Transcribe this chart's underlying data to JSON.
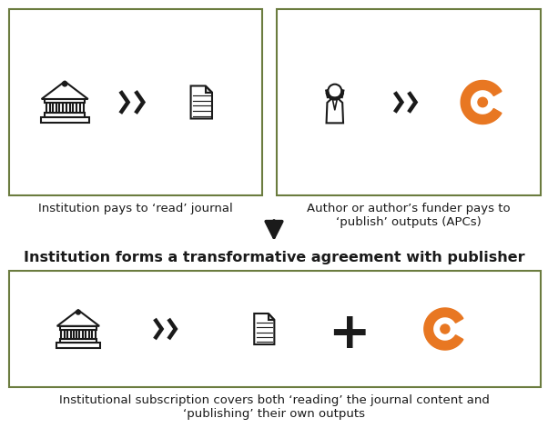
{
  "bg_color": "#ffffff",
  "box_color": "#6b7c3f",
  "orange_color": "#e87722",
  "black_color": "#1a1a1a",
  "title_text": "Institution forms a transformative agreement with publisher",
  "label_top_left": "Institution pays to ‘read’ journal",
  "label_top_right": "Author or author’s funder pays to\n‘publish’ outputs (APCs)",
  "label_bottom": "Institutional subscription covers both ‘reading’ the journal content and\n‘publishing’ their own outputs",
  "title_fontsize": 11.5,
  "label_fontsize": 9.5,
  "fig_w": 6.02,
  "fig_h": 4.82,
  "dpi": 100
}
